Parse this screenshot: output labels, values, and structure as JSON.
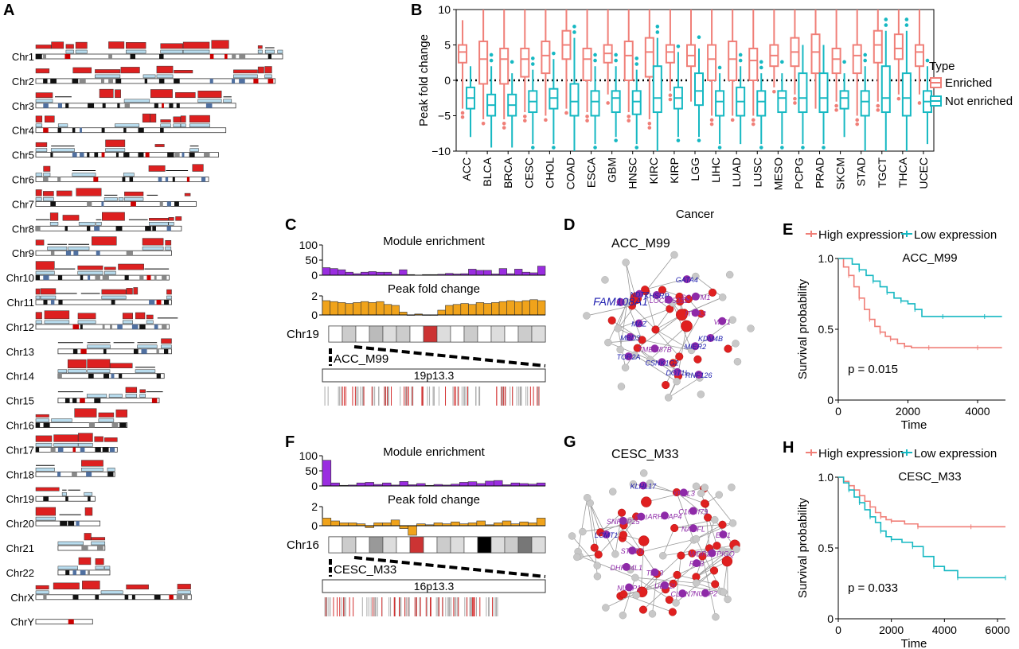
{
  "panels": {
    "A": "A",
    "B": "B",
    "C": "C",
    "D": "D",
    "E": "E",
    "F": "F",
    "G": "G",
    "H": "H"
  },
  "colors": {
    "enriched": "#f07f78",
    "not_enriched": "#16b8c2",
    "red_block": "#dd2020",
    "light_block": "#b8dcee",
    "purple": "#9a2de0",
    "orange": "#f0a31b",
    "node_red": "#e02020",
    "node_purple": "#8e2aa8",
    "node_grey": "#c8c8c8"
  },
  "panelA": {
    "chromosomes": [
      "Chr1",
      "Chr2",
      "Chr3",
      "Chr4",
      "Chr5",
      "Chr6",
      "Chr7",
      "Chr8",
      "Chr9",
      "Chr10",
      "Chr11",
      "Chr12",
      "Chr13",
      "Chr14",
      "Chr15",
      "Chr16",
      "Chr17",
      "Chr18",
      "Chr19",
      "Chr20",
      "Chr21",
      "Chr22",
      "ChrX",
      "ChrY"
    ],
    "relative_length": [
      1.0,
      0.97,
      0.81,
      0.77,
      0.74,
      0.7,
      0.65,
      0.59,
      0.55,
      0.54,
      0.55,
      0.54,
      0.46,
      0.43,
      0.41,
      0.37,
      0.33,
      0.32,
      0.24,
      0.26,
      0.19,
      0.21,
      0.63,
      0.23
    ],
    "start_offset": [
      0.0,
      0.0,
      0.0,
      0.0,
      0.0,
      0.0,
      0.0,
      0.0,
      0.0,
      0.0,
      0.0,
      0.0,
      0.09,
      0.09,
      0.09,
      0.0,
      0.0,
      0.0,
      0.0,
      0.0,
      0.09,
      0.09,
      0.0,
      0.0
    ]
  },
  "chart_data": [
    {
      "type": "box",
      "panel": "B",
      "xlabel": "Cancer",
      "ylabel": "Peak fold change",
      "ylim": [
        -10,
        10
      ],
      "yticks": [
        -10,
        -5,
        0,
        5,
        10
      ],
      "categories": [
        "ACC",
        "BLCA",
        "BRCA",
        "CESC",
        "CHOL",
        "COAD",
        "ESCA",
        "GBM",
        "HNSC",
        "KIRC",
        "KIRP",
        "LGG",
        "LIHC",
        "LUAD",
        "LUSC",
        "MESO",
        "PCPG",
        "PRAD",
        "SKCM",
        "STAD",
        "TGCT",
        "THCA",
        "UCEC"
      ],
      "legend_title": "Type",
      "series": [
        {
          "name": "Enriched",
          "stats": [
            [
              -4,
              2.5,
              4,
              5,
              8.5
            ],
            [
              -5.5,
              -0.5,
              3,
              5.5,
              10
            ],
            [
              -5.5,
              -0.5,
              3,
              4.5,
              10
            ],
            [
              -4.5,
              0.5,
              3,
              4.5,
              10
            ],
            [
              -5,
              1,
              3.5,
              5.5,
              10
            ],
            [
              -4,
              3,
              5,
              7,
              10
            ],
            [
              -4.5,
              0,
              3,
              4.5,
              10
            ],
            [
              -2,
              2.5,
              3.8,
              5,
              10
            ],
            [
              -4.5,
              0,
              3.5,
              5.5,
              10
            ],
            [
              -5.5,
              0.5,
              4,
              6,
              10
            ],
            [
              -1.5,
              2.5,
              4,
              5,
              10
            ],
            [
              -3,
              2,
              3.5,
              5,
              10
            ],
            [
              -5,
              0,
              3,
              5,
              10
            ],
            [
              -5,
              0,
              3,
              5.5,
              10
            ],
            [
              -5,
              0,
              2.8,
              4.5,
              10
            ],
            [
              -1,
              2,
              3.5,
              5,
              10
            ],
            [
              -2,
              2,
              4,
              6,
              10
            ],
            [
              -4,
              1,
              4,
              6.5,
              10
            ],
            [
              -3,
              1,
              3,
              4.5,
              10
            ],
            [
              -5,
              1,
              3.5,
              5,
              10
            ],
            [
              -3,
              2.5,
              5,
              7,
              10
            ],
            [
              -2,
              3,
              4.5,
              6.5,
              10
            ],
            [
              -2,
              2,
              4,
              5,
              10
            ]
          ]
        },
        {
          "name": "Not enriched",
          "stats": [
            [
              -8,
              -4,
              -2.5,
              -1,
              2
            ],
            [
              -9.5,
              -5,
              -3.5,
              -2,
              2
            ],
            [
              -9.5,
              -5,
              -3.5,
              -2,
              1
            ],
            [
              -9,
              -4.5,
              -3,
              -1.5,
              1.5
            ],
            [
              -9,
              -4,
              -2.5,
              -1.2,
              3
            ],
            [
              -10,
              -5,
              -3,
              -0.5,
              6
            ],
            [
              -9,
              -5,
              -3,
              -1.5,
              2
            ],
            [
              -8,
              -4.5,
              -2.5,
              -1.5,
              2
            ],
            [
              -9,
              -4.8,
              -3,
              -1.5,
              1.5
            ],
            [
              -10,
              -4.5,
              -2.5,
              2,
              6
            ],
            [
              -8,
              -4,
              -2.5,
              -1,
              4
            ],
            [
              -8,
              -3.5,
              -1.5,
              1,
              4.5
            ],
            [
              -9,
              -5,
              -3,
              -1.5,
              1
            ],
            [
              -9,
              -5,
              -3,
              -1,
              2
            ],
            [
              -9,
              -5,
              -3,
              -1.5,
              1
            ],
            [
              -9,
              -4.5,
              -2.5,
              -1.5,
              1
            ],
            [
              -9,
              -4.5,
              -2.5,
              1,
              5
            ],
            [
              -9,
              -4.5,
              -2.5,
              1,
              5
            ],
            [
              -8,
              -4,
              -2.5,
              -1.5,
              1
            ],
            [
              -10,
              -5,
              -3,
              -1.5,
              2
            ],
            [
              -10,
              -4.5,
              -2.5,
              2,
              7
            ],
            [
              -10,
              -5,
              -2.5,
              1,
              7
            ],
            [
              -9,
              -4.5,
              -3,
              -1.5,
              2
            ]
          ]
        }
      ]
    },
    {
      "type": "bar",
      "panel": "C",
      "chromosome": "Chr19",
      "band": "19p13.3",
      "module": "ACC_M99",
      "enrichment": {
        "title": "Module enrichment",
        "ylim": [
          0,
          100
        ],
        "yticks": [
          0,
          50,
          100
        ],
        "values": [
          25,
          22,
          18,
          10,
          5,
          10,
          12,
          10,
          10,
          3,
          18,
          2,
          0,
          2,
          2,
          3,
          6,
          4,
          5,
          20,
          16,
          16,
          4,
          22,
          5,
          20,
          10,
          8,
          30
        ]
      },
      "fold_change": {
        "title": "Peak fold change",
        "ylim": [
          0,
          2
        ],
        "yticks": [
          0,
          2
        ],
        "values": [
          1.5,
          1.4,
          1.3,
          1.2,
          1.3,
          1.4,
          1.3,
          1.4,
          1.1,
          1.0,
          0.3,
          0,
          0.1,
          0,
          0,
          0.5,
          1.0,
          1.1,
          1.2,
          1.1,
          1.3,
          1.2,
          1.3,
          1.4,
          1.5,
          1.4,
          1.5,
          1.6,
          1.5
        ]
      }
    },
    {
      "type": "bar",
      "panel": "F",
      "chromosome": "Chr16",
      "band": "16p13.3",
      "module": "CESC_M33",
      "enrichment": {
        "title": "Module enrichment",
        "ylim": [
          0,
          100
        ],
        "yticks": [
          0,
          50,
          100
        ],
        "values": [
          85,
          10,
          2,
          3,
          10,
          12,
          5,
          10,
          3,
          15,
          4,
          8,
          2,
          5,
          3,
          6,
          12,
          14,
          8,
          16,
          18,
          4,
          10,
          8,
          6,
          10
        ]
      },
      "fold_change": {
        "title": "Peak fold change",
        "ylim": [
          -1,
          2
        ],
        "yticks": [
          0,
          2
        ],
        "values": [
          0.8,
          0.5,
          0.3,
          0.3,
          0.2,
          -0.2,
          0.3,
          0.3,
          0.6,
          -0.3,
          -1.0,
          0.2,
          0.1,
          0.3,
          0.2,
          0.4,
          0.2,
          0.3,
          0.5,
          0.1,
          0.3,
          0.5,
          0.2,
          0.4,
          0.3,
          0.8
        ]
      }
    },
    {
      "type": "line",
      "panel": "E",
      "title": "ACC_M99",
      "xlabel": "Time",
      "ylabel": "Survival probability",
      "xlim": [
        0,
        4800
      ],
      "ylim": [
        0,
        1
      ],
      "xticks": [
        0,
        2000,
        4000
      ],
      "yticks": [
        0,
        0.5,
        1.0
      ],
      "pvalue": "p = 0.015",
      "series": [
        {
          "name": "High expression",
          "x": [
            0,
            150,
            300,
            450,
            600,
            750,
            900,
            1050,
            1200,
            1350,
            1500,
            1700,
            1900,
            2100,
            2600,
            3200,
            4000,
            4700
          ],
          "y": [
            1.0,
            0.94,
            0.88,
            0.8,
            0.72,
            0.64,
            0.57,
            0.52,
            0.48,
            0.45,
            0.43,
            0.4,
            0.38,
            0.37,
            0.37,
            0.37,
            0.37,
            0.37
          ]
        },
        {
          "name": "Low expression",
          "x": [
            0,
            400,
            600,
            800,
            1000,
            1200,
            1400,
            1600,
            1800,
            2000,
            2200,
            2400,
            3000,
            3600,
            4200,
            4700
          ],
          "y": [
            1.0,
            0.96,
            0.92,
            0.88,
            0.84,
            0.8,
            0.76,
            0.72,
            0.7,
            0.68,
            0.64,
            0.59,
            0.59,
            0.59,
            0.59,
            0.59
          ]
        }
      ]
    },
    {
      "type": "line",
      "panel": "H",
      "title": "CESC_M33",
      "xlabel": "Time",
      "ylabel": "Survival probability",
      "xlim": [
        0,
        6300
      ],
      "ylim": [
        0,
        1
      ],
      "xticks": [
        0,
        2000,
        4000,
        6000
      ],
      "yticks": [
        0,
        0.5,
        1.0
      ],
      "pvalue": "p = 0.033",
      "series": [
        {
          "name": "High expression",
          "x": [
            0,
            200,
            400,
            600,
            800,
            1000,
            1200,
            1400,
            1600,
            1800,
            2000,
            2500,
            3000,
            4000,
            5000,
            6300
          ],
          "y": [
            1.0,
            0.97,
            0.94,
            0.91,
            0.87,
            0.83,
            0.79,
            0.75,
            0.72,
            0.7,
            0.69,
            0.67,
            0.65,
            0.65,
            0.65,
            0.65
          ]
        },
        {
          "name": "Low expression",
          "x": [
            0,
            200,
            400,
            600,
            800,
            1000,
            1200,
            1400,
            1600,
            1800,
            2000,
            2400,
            2800,
            3200,
            3600,
            4000,
            4500,
            5000,
            6300
          ],
          "y": [
            1.0,
            0.96,
            0.91,
            0.86,
            0.82,
            0.77,
            0.72,
            0.68,
            0.62,
            0.58,
            0.56,
            0.54,
            0.51,
            0.44,
            0.37,
            0.34,
            0.29,
            0.29,
            0.29
          ]
        }
      ]
    }
  ],
  "networks": {
    "D": {
      "title": "ACC_M99",
      "labels": [
        {
          "text": "LOC645332",
          "color": "#8e2aa8"
        },
        {
          "text": "GATA4",
          "color": "#2020b0"
        },
        {
          "text": "SQSTM1",
          "color": "#8e2aa8"
        },
        {
          "text": "ITGA3",
          "color": "#8e2aa8"
        },
        {
          "text": "VAT1",
          "color": "#8e2aa8"
        },
        {
          "text": "KDM4B",
          "color": "#2020b0"
        },
        {
          "text": "MIER2",
          "color": "#2020b0"
        },
        {
          "text": "RNF126",
          "color": "#2020b0"
        },
        {
          "text": "DOT1L",
          "color": "#2020b0"
        },
        {
          "text": "CSNK1G2",
          "color": "#2020b0"
        },
        {
          "text": "TMEM87B",
          "color": "#8e2aa8"
        },
        {
          "text": "TOR2A",
          "color": "#2020b0"
        },
        {
          "text": "MBD3",
          "color": "#2020b0"
        },
        {
          "text": "MAZ",
          "color": "#2020b0"
        },
        {
          "text": "FAM108A1",
          "color": "#2020b0"
        },
        {
          "text": "NDT7",
          "color": "#2020b0"
        },
        {
          "text": "KHSRP",
          "color": "#2020b0"
        }
      ]
    },
    "G": {
      "title": "CESC_M33",
      "labels": [
        {
          "text": "ARHGAP4",
          "color": "#8e2aa8"
        },
        {
          "text": "YPEL3",
          "color": "#8e2aa8"
        },
        {
          "text": "C16orf79",
          "color": "#8e2aa8"
        },
        {
          "text": "NAGFL",
          "color": "#8e2aa8"
        },
        {
          "text": "EIT1",
          "color": "#8e2aa8"
        },
        {
          "text": "WDR24 PIGQ",
          "color": "#8e2aa8"
        },
        {
          "text": "RAB",
          "color": "#8e2aa8"
        },
        {
          "text": "NUBP2",
          "color": "#8e2aa8"
        },
        {
          "text": "CLCN7",
          "color": "#8e2aa8"
        },
        {
          "text": "UBE2I",
          "color": "#8e2aa8"
        },
        {
          "text": "TBL3",
          "color": "#8e2aa8"
        },
        {
          "text": "NUBP1",
          "color": "#8e2aa8"
        },
        {
          "text": "DHRS4L1",
          "color": "#8e2aa8"
        },
        {
          "text": "STUB1",
          "color": "#8e2aa8"
        },
        {
          "text": "LCMT1",
          "color": "#2020b0"
        },
        {
          "text": "SNRNP25",
          "color": "#8e2aa8"
        },
        {
          "text": "DCI",
          "color": "#8e2aa8"
        },
        {
          "text": "KLHL17",
          "color": "#2020b0"
        }
      ]
    }
  }
}
